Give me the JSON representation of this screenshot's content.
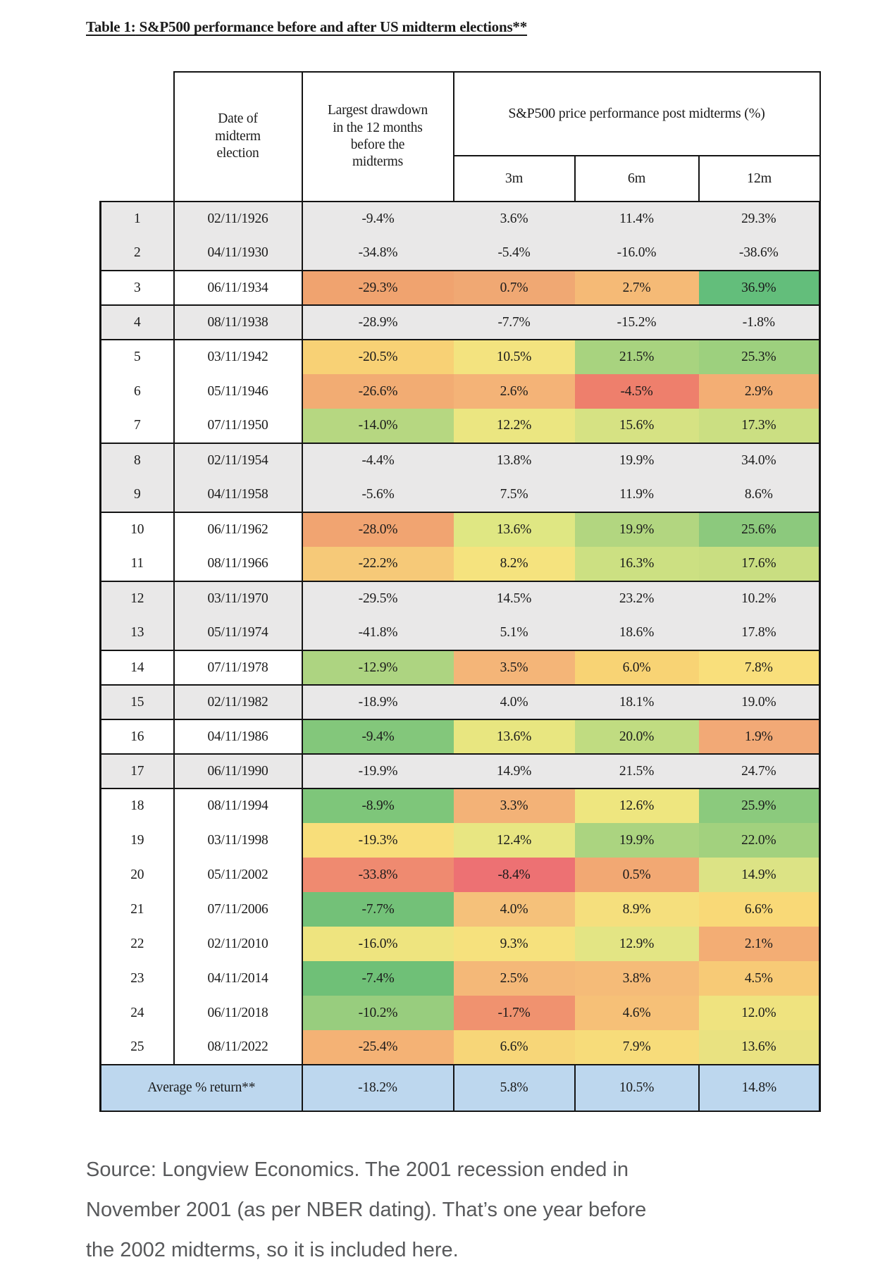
{
  "page": {
    "title_prefix": "Table 1:",
    "title_rest": " S&P500 performance before and after US midterm elections**",
    "source_lines": [
      "Source: Longview Economics. The 2001 recession ended in",
      "November 2001 (as per NBER dating). That’s one year before",
      "the 2002 midterms, so it is included here."
    ]
  },
  "table": {
    "col_headers": {
      "date": "Date of\nmidterm\nelection",
      "drawdown": "Largest drawdown\nin the 12 months\nbefore the\nmidterms",
      "span": "S&P500 price performance post midterms (%)",
      "m3": "3m",
      "m6": "6m",
      "m12": "12m"
    },
    "palette": {
      "grey_row_bg": "#e9e8e8",
      "average_row_bg": "#bdd7ee",
      "border": "#141414",
      "scale_red": "#ed7173",
      "scale_yellow": "#f5e17e",
      "scale_green": "#63be7b"
    },
    "rows": [
      {
        "n": "1",
        "date": "02/11/1926",
        "group_start": true,
        "grey": true,
        "values": {
          "dd": "-9.4%",
          "m3": "3.6%",
          "m6": "11.4%",
          "m12": "29.3%"
        },
        "colors": null
      },
      {
        "n": "2",
        "date": "04/11/1930",
        "group_start": false,
        "grey": true,
        "values": {
          "dd": "-34.8%",
          "m3": "-5.4%",
          "m6": "-16.0%",
          "m12": "-38.6%"
        },
        "colors": null
      },
      {
        "n": "3",
        "date": "06/11/1934",
        "group_start": true,
        "grey": false,
        "values": {
          "dd": "-29.3%",
          "m3": "0.7%",
          "m6": "2.7%",
          "m12": "36.9%"
        },
        "colors": {
          "dd": "#f0a36f",
          "m3": "#f0a873",
          "m6": "#f5ba76",
          "m12": "#63be7b"
        }
      },
      {
        "n": "4",
        "date": "08/11/1938",
        "group_start": true,
        "grey": true,
        "values": {
          "dd": "-28.9%",
          "m3": "-7.7%",
          "m6": "-15.2%",
          "m12": "-1.8%"
        },
        "colors": null
      },
      {
        "n": "5",
        "date": "03/11/1942",
        "group_start": true,
        "grey": false,
        "values": {
          "dd": "-20.5%",
          "m3": "10.5%",
          "m6": "21.5%",
          "m12": "25.3%"
        },
        "colors": {
          "dd": "#f8d175",
          "m3": "#f3e37f",
          "m6": "#a8d37f",
          "m12": "#9dd07e"
        }
      },
      {
        "n": "6",
        "date": "05/11/1946",
        "group_start": false,
        "grey": false,
        "values": {
          "dd": "-26.6%",
          "m3": "2.6%",
          "m6": "-4.5%",
          "m12": "2.9%"
        },
        "colors": {
          "dd": "#f2ac73",
          "m3": "#f4b377",
          "m6": "#ee7f6c",
          "m12": "#f3ae74"
        }
      },
      {
        "n": "7",
        "date": "07/11/1950",
        "group_start": false,
        "grey": false,
        "values": {
          "dd": "-14.0%",
          "m3": "12.2%",
          "m6": "15.6%",
          "m12": "17.3%"
        },
        "colors": {
          "dd": "#b6d781",
          "m3": "#ebe681",
          "m6": "#d6e283",
          "m12": "#cbdf82"
        }
      },
      {
        "n": "8",
        "date": "02/11/1954",
        "group_start": true,
        "grey": true,
        "values": {
          "dd": "-4.4%",
          "m3": "13.8%",
          "m6": "19.9%",
          "m12": "34.0%"
        },
        "colors": null
      },
      {
        "n": "9",
        "date": "04/11/1958",
        "group_start": false,
        "grey": true,
        "values": {
          "dd": "-5.6%",
          "m3": "7.5%",
          "m6": "11.9%",
          "m12": "8.6%"
        },
        "colors": null
      },
      {
        "n": "10",
        "date": "06/11/1962",
        "group_start": true,
        "grey": false,
        "values": {
          "dd": "-28.0%",
          "m3": "13.6%",
          "m6": "19.9%",
          "m12": "25.6%"
        },
        "colors": {
          "dd": "#f1a471",
          "m3": "#dfe783",
          "m6": "#b2d680",
          "m12": "#8cc97d"
        }
      },
      {
        "n": "11",
        "date": "08/11/1966",
        "group_start": false,
        "grey": false,
        "values": {
          "dd": "-22.2%",
          "m3": "8.2%",
          "m6": "16.3%",
          "m12": "17.6%"
        },
        "colors": {
          "dd": "#f6c978",
          "m3": "#f5e37e",
          "m6": "#cce082",
          "m12": "#c9de81"
        }
      },
      {
        "n": "12",
        "date": "03/11/1970",
        "group_start": true,
        "grey": true,
        "values": {
          "dd": "-29.5%",
          "m3": "14.5%",
          "m6": "23.2%",
          "m12": "10.2%"
        },
        "colors": null
      },
      {
        "n": "13",
        "date": "05/11/1974",
        "group_start": false,
        "grey": true,
        "values": {
          "dd": "-41.8%",
          "m3": "5.1%",
          "m6": "18.6%",
          "m12": "17.8%"
        },
        "colors": null
      },
      {
        "n": "14",
        "date": "07/11/1978",
        "group_start": true,
        "grey": false,
        "values": {
          "dd": "-12.9%",
          "m3": "3.5%",
          "m6": "6.0%",
          "m12": "7.8%"
        },
        "colors": {
          "dd": "#add481",
          "m3": "#f4b578",
          "m6": "#f8d374",
          "m12": "#f9df7b"
        }
      },
      {
        "n": "15",
        "date": "02/11/1982",
        "group_start": true,
        "grey": true,
        "values": {
          "dd": "-18.9%",
          "m3": "4.0%",
          "m6": "18.1%",
          "m12": "19.0%"
        },
        "colors": null
      },
      {
        "n": "16",
        "date": "04/11/1986",
        "group_start": true,
        "grey": false,
        "values": {
          "dd": "-9.4%",
          "m3": "13.6%",
          "m6": "20.0%",
          "m12": "1.9%"
        },
        "colors": {
          "dd": "#83c77b",
          "m3": "#e8e680",
          "m6": "#c0dc81",
          "m12": "#f2a976"
        }
      },
      {
        "n": "17",
        "date": "06/11/1990",
        "group_start": true,
        "grey": true,
        "values": {
          "dd": "-19.9%",
          "m3": "14.9%",
          "m6": "21.5%",
          "m12": "24.7%"
        },
        "colors": null
      },
      {
        "n": "18",
        "date": "08/11/1994",
        "group_start": true,
        "grey": false,
        "values": {
          "dd": "-8.9%",
          "m3": "3.3%",
          "m6": "12.6%",
          "m12": "25.9%"
        },
        "colors": {
          "dd": "#7ec67a",
          "m3": "#f3b277",
          "m6": "#eee67f",
          "m12": "#8bca7d"
        }
      },
      {
        "n": "19",
        "date": "03/11/1998",
        "group_start": false,
        "grey": false,
        "values": {
          "dd": "-19.3%",
          "m3": "12.4%",
          "m6": "19.9%",
          "m12": "22.0%"
        },
        "colors": {
          "dd": "#f8de7a",
          "m3": "#e8e682",
          "m6": "#abd480",
          "m12": "#a2d17e"
        }
      },
      {
        "n": "20",
        "date": "05/11/2002",
        "group_start": false,
        "grey": false,
        "values": {
          "dd": "-33.8%",
          "m3": "-8.4%",
          "m6": "0.5%",
          "m12": "14.9%"
        },
        "colors": {
          "dd": "#ef8a70",
          "m3": "#ed7173",
          "m6": "#f2a873",
          "m12": "#dce385"
        }
      },
      {
        "n": "21",
        "date": "07/11/2006",
        "group_start": false,
        "grey": false,
        "values": {
          "dd": "-7.7%",
          "m3": "4.0%",
          "m6": "8.9%",
          "m12": "6.6%"
        },
        "colors": {
          "dd": "#73c178",
          "m3": "#f5c17a",
          "m6": "#f5df7d",
          "m12": "#f9d977"
        }
      },
      {
        "n": "22",
        "date": "02/11/2010",
        "group_start": false,
        "grey": false,
        "values": {
          "dd": "-16.0%",
          "m3": "9.3%",
          "m6": "12.9%",
          "m12": "2.1%"
        },
        "colors": {
          "dd": "#eee47f",
          "m3": "#f6e17d",
          "m6": "#e3e584",
          "m12": "#f3ad74"
        }
      },
      {
        "n": "23",
        "date": "04/11/2014",
        "group_start": false,
        "grey": false,
        "values": {
          "dd": "-7.4%",
          "m3": "2.5%",
          "m6": "3.8%",
          "m12": "4.5%"
        },
        "colors": {
          "dd": "#6fc077",
          "m3": "#f4b878",
          "m6": "#f5bb78",
          "m12": "#f7ca76"
        }
      },
      {
        "n": "24",
        "date": "06/11/2018",
        "group_start": false,
        "grey": false,
        "values": {
          "dd": "-10.2%",
          "m3": "-1.7%",
          "m6": "4.6%",
          "m12": "12.0%"
        },
        "colors": {
          "dd": "#98cd7e",
          "m3": "#f0926f",
          "m6": "#f6c077",
          "m12": "#efe37f"
        }
      },
      {
        "n": "25",
        "date": "08/11/2022",
        "group_start": false,
        "grey": false,
        "values": {
          "dd": "-25.4%",
          "m3": "6.6%",
          "m6": "7.9%",
          "m12": "13.6%"
        },
        "colors": {
          "dd": "#f4b275",
          "m3": "#f7d678",
          "m6": "#f7dc7a",
          "m12": "#e9e281"
        }
      }
    ],
    "average": {
      "label": "Average % return**",
      "dd": "-18.2%",
      "m3": "5.8%",
      "m6": "10.5%",
      "m12": "14.8%"
    }
  }
}
